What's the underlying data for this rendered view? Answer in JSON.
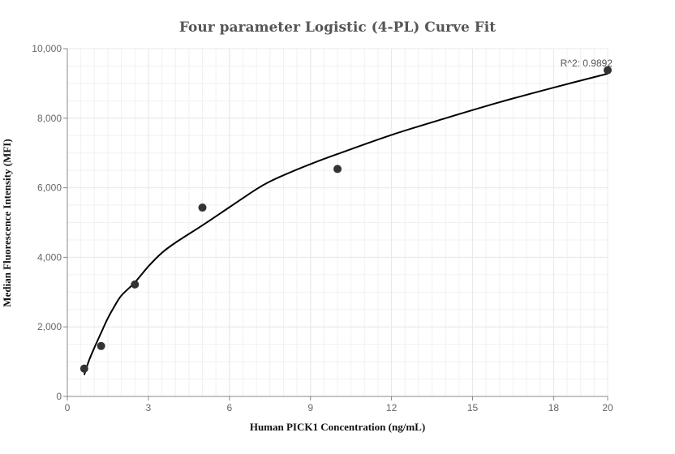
{
  "chart_data": {
    "type": "scatter",
    "title": "Four parameter Logistic (4-PL) Curve Fit",
    "xlabel": "Human PICK1 Concentration (ng/mL)",
    "ylabel": "Median Fluorescence Intensity (MFI)",
    "xlim": [
      0,
      20
    ],
    "ylim": [
      0,
      10000
    ],
    "x_ticks": [
      0,
      3,
      6,
      9,
      12,
      15,
      18,
      20
    ],
    "x_tick_labels": [
      "0",
      "3",
      "6",
      "9",
      "12",
      "15",
      "18",
      "20"
    ],
    "y_ticks": [
      0,
      2000,
      4000,
      6000,
      8000,
      10000
    ],
    "y_tick_labels": [
      "0",
      "2,000",
      "4,000",
      "6,000",
      "8,000",
      "10,000"
    ],
    "grid": true,
    "points": {
      "x": [
        0.625,
        1.25,
        2.5,
        5,
        10,
        20
      ],
      "y": [
        800,
        1450,
        3220,
        5430,
        6540,
        9380
      ]
    },
    "fit_curve": {
      "x": [
        0.625,
        0.8,
        1.0,
        1.25,
        1.5,
        1.75,
        2.0,
        2.5,
        3.0,
        3.5,
        4.0,
        5.0,
        6.0,
        7.0,
        7.5,
        8.0,
        9.0,
        10.0,
        12.0,
        14.0,
        16.0,
        18.0,
        20.0
      ],
      "y": [
        620,
        1030,
        1400,
        1830,
        2250,
        2600,
        2900,
        3280,
        3740,
        4130,
        4420,
        4920,
        5440,
        5960,
        6180,
        6360,
        6680,
        6970,
        7520,
        8000,
        8460,
        8880,
        9280
      ]
    },
    "annotation": "R^2: 0.9892",
    "colors": {
      "points": "#333333",
      "curve": "#000000",
      "grid": "#e8e8e8"
    }
  }
}
